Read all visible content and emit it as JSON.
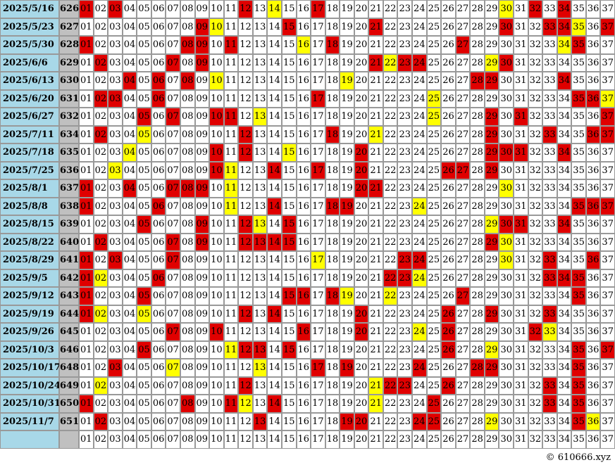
{
  "numbers": [
    "01",
    "02",
    "03",
    "04",
    "05",
    "06",
    "07",
    "08",
    "09",
    "10",
    "11",
    "12",
    "13",
    "14",
    "15",
    "16",
    "17",
    "18",
    "19",
    "20",
    "21",
    "22",
    "23",
    "24",
    "25",
    "26",
    "27",
    "28",
    "29",
    "30",
    "31",
    "32",
    "33",
    "34",
    "35",
    "36",
    "37"
  ],
  "rows": [
    {
      "date": "2025/5/16",
      "issue": "626",
      "red": [
        "01",
        "03",
        "12",
        "17",
        "32",
        "34"
      ],
      "yellow": [
        "14",
        "30"
      ]
    },
    {
      "date": "2025/5/23",
      "issue": "627",
      "red": [
        "09",
        "15",
        "21",
        "30",
        "33",
        "34",
        "37"
      ],
      "yellow": [
        "10",
        "35"
      ]
    },
    {
      "date": "2025/5/30",
      "issue": "628",
      "red": [
        "01",
        "08",
        "09",
        "11",
        "18",
        "27",
        "35"
      ],
      "yellow": [
        "16",
        "34"
      ]
    },
    {
      "date": "2025/6/6",
      "issue": "629",
      "red": [
        "02",
        "07",
        "09",
        "21",
        "23",
        "24",
        "30"
      ],
      "yellow": [
        "22",
        "29"
      ]
    },
    {
      "date": "2025/6/13",
      "issue": "630",
      "red": [
        "04",
        "06",
        "08",
        "28",
        "29",
        "34"
      ],
      "yellow": [
        "10",
        "19"
      ]
    },
    {
      "date": "2025/6/20",
      "issue": "631",
      "red": [
        "02",
        "03",
        "06",
        "17",
        "35",
        "36"
      ],
      "yellow": [
        "25",
        "37"
      ]
    },
    {
      "date": "2025/6/27",
      "issue": "632",
      "red": [
        "05",
        "07",
        "10",
        "11",
        "29",
        "31",
        "37"
      ],
      "yellow": [
        "13",
        "25"
      ]
    },
    {
      "date": "2025/7/11",
      "issue": "634",
      "red": [
        "02",
        "12",
        "18",
        "29",
        "33",
        "36",
        "37"
      ],
      "yellow": [
        "05",
        "21"
      ]
    },
    {
      "date": "2025/7/18",
      "issue": "635",
      "red": [
        "10",
        "12",
        "20",
        "29",
        "30",
        "31",
        "34"
      ],
      "yellow": [
        "04",
        "15"
      ]
    },
    {
      "date": "2025/7/25",
      "issue": "636",
      "red": [
        "10",
        "14",
        "17",
        "20",
        "26",
        "27",
        "29"
      ],
      "yellow": [
        "03",
        "11"
      ]
    },
    {
      "date": "2025/8/1",
      "issue": "637",
      "red": [
        "01",
        "04",
        "07",
        "08",
        "09",
        "20",
        "21"
      ],
      "yellow": [
        "11",
        "30"
      ]
    },
    {
      "date": "2025/8/8",
      "issue": "638",
      "red": [
        "01",
        "06",
        "14",
        "18",
        "19",
        "35",
        "36",
        "37"
      ],
      "yellow": [
        "11",
        "24"
      ]
    },
    {
      "date": "2025/8/15",
      "issue": "639",
      "red": [
        "05",
        "09",
        "12",
        "15",
        "30",
        "31",
        "34"
      ],
      "yellow": [
        "13",
        "29"
      ]
    },
    {
      "date": "2025/8/22",
      "issue": "640",
      "red": [
        "02",
        "07",
        "09",
        "12",
        "13",
        "14",
        "15",
        "29"
      ],
      "yellow": [
        "30"
      ]
    },
    {
      "date": "2025/8/29",
      "issue": "641",
      "red": [
        "01",
        "03",
        "07",
        "23",
        "24",
        "33",
        "36"
      ],
      "yellow": [
        "17",
        "30"
      ]
    },
    {
      "date": "2025/9/5",
      "issue": "642",
      "red": [
        "01",
        "06",
        "22",
        "23",
        "33",
        "34",
        "35"
      ],
      "yellow": [
        "02",
        "24"
      ]
    },
    {
      "date": "2025/9/12",
      "issue": "643",
      "red": [
        "01",
        "05",
        "15",
        "16",
        "18",
        "27",
        "35"
      ],
      "yellow": [
        "19",
        "22"
      ]
    },
    {
      "date": "2025/9/19",
      "issue": "644",
      "red": [
        "01",
        "12",
        "14",
        "20",
        "26",
        "29",
        "33"
      ],
      "yellow": [
        "02",
        "05"
      ]
    },
    {
      "date": "2025/9/26",
      "issue": "645",
      "red": [
        "07",
        "10",
        "16",
        "20",
        "26",
        "32"
      ],
      "yellow": [
        "24",
        "33"
      ]
    },
    {
      "date": "2025/10/3",
      "issue": "646",
      "red": [
        "05",
        "12",
        "13",
        "15",
        "26",
        "35",
        "37"
      ],
      "yellow": [
        "11",
        "29"
      ]
    },
    {
      "date": "2025/10/17",
      "issue": "648",
      "red": [
        "03",
        "17",
        "19",
        "24",
        "28",
        "29",
        "35"
      ],
      "yellow": [
        "07",
        "13"
      ]
    },
    {
      "date": "2025/10/24",
      "issue": "649",
      "red": [
        "12",
        "22",
        "23",
        "26",
        "33",
        "35"
      ],
      "yellow": [
        "02",
        "21"
      ]
    },
    {
      "date": "2025/10/31",
      "issue": "650",
      "red": [
        "01",
        "08",
        "11",
        "14",
        "25",
        "33",
        "35"
      ],
      "yellow": [
        "12",
        "21"
      ]
    },
    {
      "date": "2025/11/7",
      "issue": "651",
      "red": [
        "02",
        "13",
        "19",
        "20",
        "24",
        "25",
        "35"
      ],
      "yellow": [
        "29",
        "36"
      ]
    }
  ],
  "footer": "© 610666.xyz"
}
